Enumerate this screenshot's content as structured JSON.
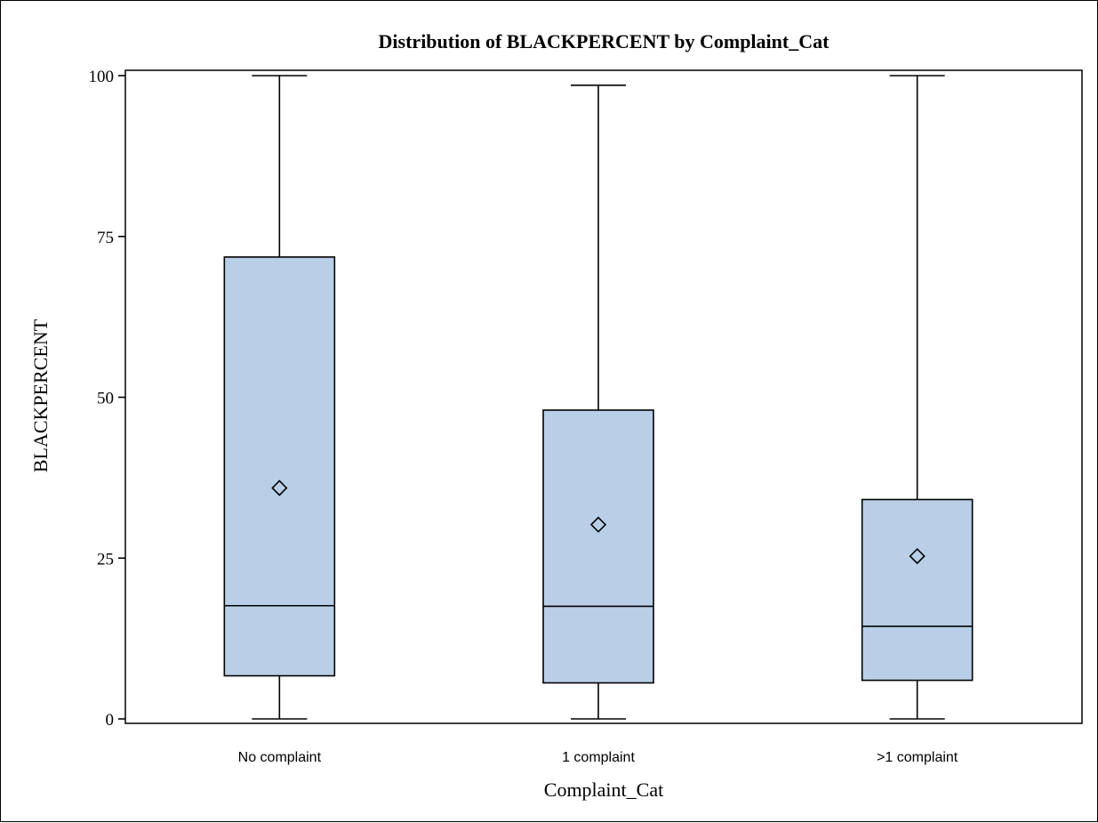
{
  "chart_data": {
    "type": "box",
    "title": "Distribution of BLACKPERCENT by Complaint_Cat",
    "xlabel": "Complaint_Cat",
    "ylabel": "BLACKPERCENT",
    "ylim": [
      0,
      100
    ],
    "yticks": [
      0,
      25,
      50,
      75,
      100
    ],
    "categories": [
      "No complaint",
      "1 complaint",
      ">1 complaint"
    ],
    "boxes": [
      {
        "category": "No complaint",
        "min": 0,
        "q1": 6.7,
        "median": 17.6,
        "q3": 71.8,
        "max": 100,
        "mean": 35.9
      },
      {
        "category": "1 complaint",
        "min": 0,
        "q1": 5.6,
        "median": 17.5,
        "q3": 48.0,
        "max": 98.5,
        "mean": 30.2
      },
      {
        "category": ">1 complaint",
        "min": 0,
        "q1": 6.0,
        "median": 14.4,
        "q3": 34.1,
        "max": 100,
        "mean": 25.3
      }
    ],
    "box_fill": "#b9cfe8",
    "line_color": "#000000",
    "grid": false,
    "legend": "none"
  }
}
